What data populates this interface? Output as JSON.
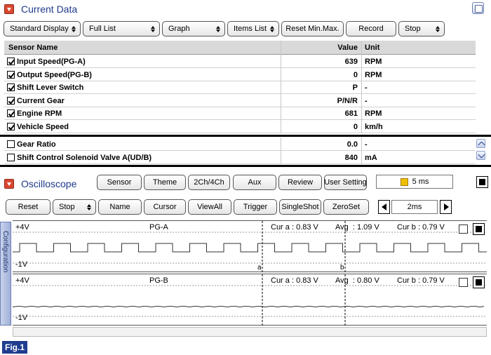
{
  "current_data": {
    "title": "Current Data",
    "toolbar": [
      {
        "id": "standard-display",
        "label": "Standard Display",
        "arrows": true
      },
      {
        "id": "full-list",
        "label": "Full List",
        "arrows": true
      },
      {
        "id": "graph",
        "label": "Graph",
        "arrows": true
      },
      {
        "id": "items-list",
        "label": "Items List",
        "arrows": true
      },
      {
        "id": "reset-min-max",
        "label": "Reset Min.Max.",
        "arrows": false
      },
      {
        "id": "record",
        "label": "Record",
        "arrows": false
      },
      {
        "id": "stop",
        "label": "Stop",
        "arrows": true
      }
    ],
    "columns": {
      "name": "Sensor Name",
      "value": "Value",
      "unit": "Unit"
    },
    "rows": [
      {
        "name": "Input Speed(PG-A)",
        "value": "639",
        "unit": "RPM",
        "checked": true
      },
      {
        "name": "Output Speed(PG-B)",
        "value": "0",
        "unit": "RPM",
        "checked": true
      },
      {
        "name": "Shift Lever Switch",
        "value": "P",
        "unit": "-",
        "checked": true
      },
      {
        "name": "Current Gear",
        "value": "P/N/R",
        "unit": "-",
        "checked": true
      },
      {
        "name": "Engine RPM",
        "value": "681",
        "unit": "RPM",
        "checked": true
      },
      {
        "name": "Vehicle Speed",
        "value": "0",
        "unit": "km/h",
        "checked": true
      }
    ],
    "extra_rows": [
      {
        "name": "Gear Ratio",
        "value": "0.0",
        "unit": "-",
        "checked": false
      },
      {
        "name": "Shift Control Solenoid Valve A(UD/B)",
        "value": "840",
        "unit": "mA",
        "checked": false
      }
    ]
  },
  "oscilloscope": {
    "title": "Oscilloscope",
    "top_buttons": [
      "Sensor",
      "Theme",
      "2Ch/4Ch",
      "Aux",
      "Review",
      "User Setting"
    ],
    "time_readout": "5 ms",
    "bottom_buttons": [
      {
        "id": "reset",
        "label": "Reset",
        "arrows": false
      },
      {
        "id": "stop",
        "label": "Stop",
        "arrows": true
      },
      {
        "id": "name",
        "label": "Name",
        "arrows": false
      },
      {
        "id": "cursor",
        "label": "Cursor",
        "arrows": false
      },
      {
        "id": "viewall",
        "label": "ViewAll",
        "arrows": false
      },
      {
        "id": "trigger",
        "label": "Trigger",
        "arrows": false
      },
      {
        "id": "singleshot",
        "label": "SingleShot",
        "arrows": false
      },
      {
        "id": "zeroset",
        "label": "ZeroSet",
        "arrows": false
      }
    ],
    "timebase": "2ms",
    "side_tab": "Configuration",
    "channels": [
      {
        "id": "pg-a",
        "name": "PG-A",
        "top_label": "+4V",
        "bottom_label": "-1V",
        "cur_a": "Cur a : 0.83 V",
        "avg": "Avg  : 1.09 V",
        "cur_b": "Cur b : 0.79 V",
        "marker_a": "a",
        "marker_b": "b"
      },
      {
        "id": "pg-b",
        "name": "PG-B",
        "top_label": "+4V",
        "bottom_label": "-1V",
        "cur_a": "Cur a : 0.83 V",
        "avg": "Avg  : 0.80 V",
        "cur_b": "Cur b : 0.79 V"
      }
    ]
  },
  "figure_label": "Fig.1",
  "colors": {
    "accent": "#1f3d8f",
    "collapse": "#d9472f",
    "header_bg": "#d9d9d9"
  },
  "icons": {
    "collapse": "triangle-down-icon",
    "window": "restore-window-icon",
    "timebase_left": "left-arrow-icon",
    "timebase_right": "right-arrow-icon"
  }
}
